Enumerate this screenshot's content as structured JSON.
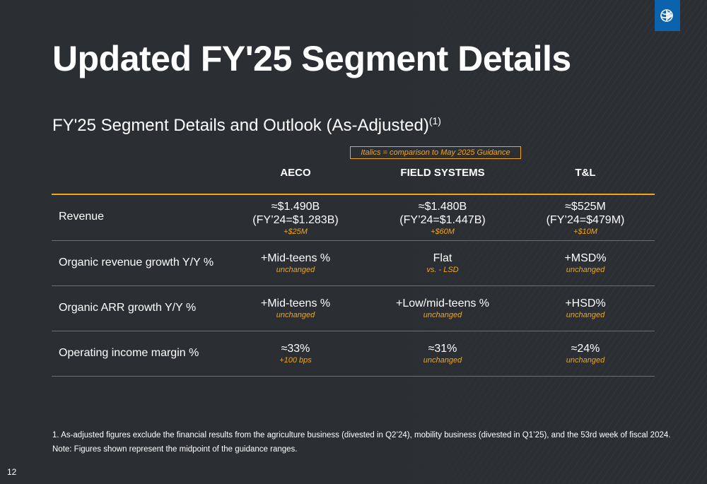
{
  "title": "Updated FY'25 Segment Details",
  "subtitle": {
    "text": "FY'25 Segment Details and Outlook (As-Adjusted)",
    "footnote_ref": "(1)"
  },
  "italics_note": "Italics = comparison to May 2025 Guidance",
  "columns": [
    "AECO",
    "FIELD SYSTEMS",
    "T&L"
  ],
  "rows": [
    {
      "label": "Revenue",
      "cells": [
        {
          "lines": [
            "≈$1.490B",
            "(FY’24=$1.283B)"
          ],
          "note": "+$25M"
        },
        {
          "lines": [
            "≈$1.480B",
            "(FY’24=$1.447B)"
          ],
          "note": "+$60M"
        },
        {
          "lines": [
            "≈$525M",
            "(FY’24=$479M)"
          ],
          "note": "+$10M"
        }
      ]
    },
    {
      "label": "Organic revenue growth Y/Y %",
      "cells": [
        {
          "lines": [
            "+Mid-teens %"
          ],
          "note": "unchanged"
        },
        {
          "lines": [
            "Flat"
          ],
          "note": "vs. - LSD"
        },
        {
          "lines": [
            "+MSD%"
          ],
          "note": "unchanged"
        }
      ]
    },
    {
      "label": "Organic ARR growth Y/Y %",
      "cells": [
        {
          "lines": [
            "+Mid-teens %"
          ],
          "note": "unchanged"
        },
        {
          "lines": [
            "+Low/mid-teens %"
          ],
          "note": "unchanged"
        },
        {
          "lines": [
            "+HSD%"
          ],
          "note": "unchanged"
        }
      ]
    },
    {
      "label": "Operating income margin %",
      "cells": [
        {
          "lines": [
            "≈33%"
          ],
          "note": "+100 bps"
        },
        {
          "lines": [
            "≈31%"
          ],
          "note": "unchanged"
        },
        {
          "lines": [
            "≈24%"
          ],
          "note": "unchanged"
        }
      ]
    }
  ],
  "footnotes": [
    "1.  As-adjusted figures exclude the financial results from the agriculture business (divested in Q2’24), mobility business (divested in Q1’25), and the 53rd week of fiscal 2024.",
    "Note: Figures shown represent the midpoint of the guidance ranges."
  ],
  "page_number": "12",
  "colors": {
    "background": "#2b2e33",
    "accent": "#f2a51c",
    "logo": "#0b63ae"
  },
  "logo_icon": "company-globe-logo-icon"
}
